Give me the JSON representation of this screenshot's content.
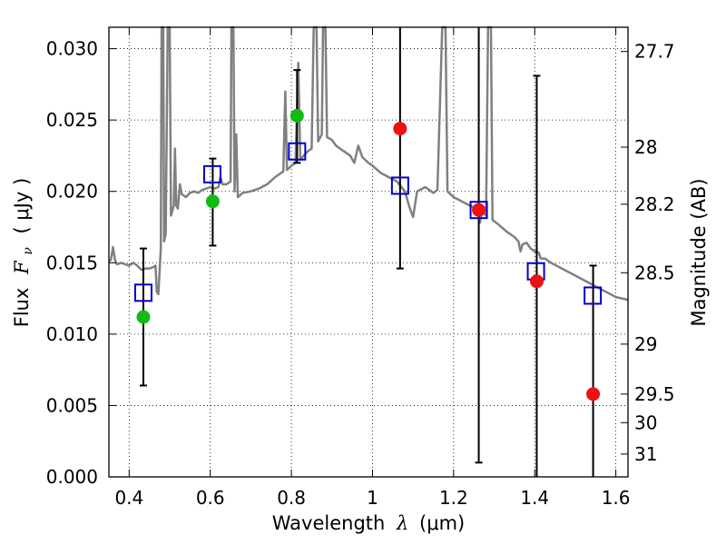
{
  "chart_data": {
    "type": "scatter",
    "title": "",
    "xlabel": {
      "prefix": "Wavelength",
      "symbol": "λ",
      "unit": "(μm)"
    },
    "ylabel": {
      "prefix": "Flux",
      "symbol": "F",
      "subscript": "ν",
      "unit": "( μJy )"
    },
    "ylabel_right": "Magnitude (AB)",
    "xlim": [
      0.35,
      1.63
    ],
    "ylim": [
      0.0,
      0.0315
    ],
    "grid": true,
    "x_ticks": [
      0.4,
      0.6,
      0.8,
      1.0,
      1.2,
      1.4,
      1.6
    ],
    "x_tick_labels": [
      "0.4",
      "0.6",
      "0.8",
      "1",
      "1.2",
      "1.4",
      "1.6"
    ],
    "y_ticks": [
      0.0,
      0.005,
      0.01,
      0.015,
      0.02,
      0.025,
      0.03
    ],
    "y_tick_labels": [
      "0.000",
      "0.005",
      "0.010",
      "0.015",
      "0.020",
      "0.025",
      "0.030"
    ],
    "right_ticks": [
      {
        "label": "27.7",
        "flux": 0.0298
      },
      {
        "label": "28",
        "flux": 0.0231
      },
      {
        "label": "28.2",
        "flux": 0.0191
      },
      {
        "label": "28.5",
        "flux": 0.0143
      },
      {
        "label": "29",
        "flux": 0.0093
      },
      {
        "label": "29.5",
        "flux": 0.0058
      },
      {
        "label": "30",
        "flux": 0.0038
      },
      {
        "label": "31",
        "flux": 0.0016
      }
    ],
    "series": [
      {
        "name": "model SED",
        "kind": "line",
        "color": "#808080",
        "points": [
          [
            0.35,
            0.0151
          ],
          [
            0.355,
            0.0152
          ],
          [
            0.36,
            0.0161
          ],
          [
            0.365,
            0.0152
          ],
          [
            0.37,
            0.0149
          ],
          [
            0.38,
            0.015
          ],
          [
            0.39,
            0.0149
          ],
          [
            0.4,
            0.0148
          ],
          [
            0.41,
            0.015
          ],
          [
            0.42,
            0.0148
          ],
          [
            0.43,
            0.0145
          ],
          [
            0.44,
            0.0146
          ],
          [
            0.45,
            0.0146
          ],
          [
            0.46,
            0.0147
          ],
          [
            0.465,
            0.0148
          ],
          [
            0.468,
            0.013
          ],
          [
            0.472,
            0.0128
          ],
          [
            0.478,
            0.016
          ],
          [
            0.48,
            0.0315
          ],
          [
            0.484,
            0.0315
          ],
          [
            0.486,
            0.0165
          ],
          [
            0.49,
            0.017
          ],
          [
            0.495,
            0.0315
          ],
          [
            0.5,
            0.0315
          ],
          [
            0.503,
            0.0183
          ],
          [
            0.51,
            0.019
          ],
          [
            0.513,
            0.023
          ],
          [
            0.516,
            0.019
          ],
          [
            0.52,
            0.0188
          ],
          [
            0.525,
            0.0205
          ],
          [
            0.53,
            0.0198
          ],
          [
            0.54,
            0.0196
          ],
          [
            0.55,
            0.0199
          ],
          [
            0.56,
            0.02
          ],
          [
            0.57,
            0.0199
          ],
          [
            0.58,
            0.0201
          ],
          [
            0.59,
            0.0202
          ],
          [
            0.6,
            0.0203
          ],
          [
            0.61,
            0.0202
          ],
          [
            0.62,
            0.0203
          ],
          [
            0.625,
            0.021
          ],
          [
            0.63,
            0.0205
          ],
          [
            0.64,
            0.0205
          ],
          [
            0.65,
            0.0207
          ],
          [
            0.652,
            0.0315
          ],
          [
            0.657,
            0.0315
          ],
          [
            0.66,
            0.02
          ],
          [
            0.664,
            0.024
          ],
          [
            0.668,
            0.0196
          ],
          [
            0.68,
            0.0199
          ],
          [
            0.7,
            0.02
          ],
          [
            0.72,
            0.0202
          ],
          [
            0.74,
            0.0205
          ],
          [
            0.76,
            0.021
          ],
          [
            0.78,
            0.0214
          ],
          [
            0.785,
            0.027
          ],
          [
            0.789,
            0.0215
          ],
          [
            0.8,
            0.0218
          ],
          [
            0.81,
            0.022
          ],
          [
            0.817,
            0.029
          ],
          [
            0.822,
            0.0222
          ],
          [
            0.83,
            0.0225
          ],
          [
            0.84,
            0.0228
          ],
          [
            0.85,
            0.023
          ],
          [
            0.855,
            0.0315
          ],
          [
            0.862,
            0.0315
          ],
          [
            0.866,
            0.0235
          ],
          [
            0.875,
            0.024
          ],
          [
            0.878,
            0.0315
          ],
          [
            0.884,
            0.0315
          ],
          [
            0.888,
            0.0238
          ],
          [
            0.9,
            0.0236
          ],
          [
            0.91,
            0.0232
          ],
          [
            0.92,
            0.023
          ],
          [
            0.93,
            0.0228
          ],
          [
            0.945,
            0.0225
          ],
          [
            0.955,
            0.022
          ],
          [
            0.965,
            0.0232
          ],
          [
            0.975,
            0.0224
          ],
          [
            0.99,
            0.022
          ],
          [
            1.0,
            0.0218
          ],
          [
            1.02,
            0.0213
          ],
          [
            1.04,
            0.021
          ],
          [
            1.06,
            0.0207
          ],
          [
            1.08,
            0.02
          ],
          [
            1.09,
            0.019
          ],
          [
            1.1,
            0.0182
          ],
          [
            1.11,
            0.02
          ],
          [
            1.13,
            0.0203
          ],
          [
            1.15,
            0.0199
          ],
          [
            1.16,
            0.0201
          ],
          [
            1.172,
            0.0315
          ],
          [
            1.18,
            0.0315
          ],
          [
            1.185,
            0.02
          ],
          [
            1.2,
            0.0196
          ],
          [
            1.22,
            0.0193
          ],
          [
            1.24,
            0.019
          ],
          [
            1.26,
            0.0188
          ],
          [
            1.265,
            0.0178
          ],
          [
            1.27,
            0.0186
          ],
          [
            1.28,
            0.0183
          ],
          [
            1.285,
            0.0315
          ],
          [
            1.292,
            0.0315
          ],
          [
            1.296,
            0.018
          ],
          [
            1.31,
            0.0177
          ],
          [
            1.33,
            0.0172
          ],
          [
            1.35,
            0.0168
          ],
          [
            1.36,
            0.0165
          ],
          [
            1.365,
            0.0158
          ],
          [
            1.37,
            0.0163
          ],
          [
            1.38,
            0.0164
          ],
          [
            1.39,
            0.016
          ],
          [
            1.4,
            0.0158
          ],
          [
            1.41,
            0.0157
          ],
          [
            1.415,
            0.0153
          ],
          [
            1.425,
            0.0153
          ],
          [
            1.44,
            0.015
          ],
          [
            1.46,
            0.0147
          ],
          [
            1.48,
            0.0144
          ],
          [
            1.5,
            0.0141
          ],
          [
            1.52,
            0.0138
          ],
          [
            1.54,
            0.0135
          ],
          [
            1.56,
            0.0132
          ],
          [
            1.58,
            0.0129
          ],
          [
            1.6,
            0.0126
          ],
          [
            1.63,
            0.0124
          ]
        ]
      },
      {
        "name": "model photometry",
        "kind": "open-square",
        "color": "#0000cc",
        "points": [
          [
            0.435,
            0.0129
          ],
          [
            0.605,
            0.0212
          ],
          [
            0.814,
            0.0228
          ],
          [
            1.068,
            0.0204
          ],
          [
            1.262,
            0.0187
          ],
          [
            1.403,
            0.0144
          ],
          [
            1.543,
            0.0127
          ]
        ]
      },
      {
        "name": "detections",
        "kind": "filled-circle",
        "color": "#11bb11",
        "points": [
          [
            0.435,
            0.0112
          ],
          [
            0.606,
            0.0193
          ],
          [
            0.814,
            0.0253
          ]
        ]
      },
      {
        "name": "upper-band measurements",
        "kind": "filled-circle",
        "color": "#ee1111",
        "points": [
          [
            1.068,
            0.0244
          ],
          [
            1.262,
            0.0187
          ],
          [
            1.405,
            0.0137
          ],
          [
            1.544,
            0.0058
          ]
        ]
      },
      {
        "name": "error bars",
        "kind": "errorbar",
        "color": "#000000",
        "points": [
          [
            0.435,
            0.0064,
            0.016
          ],
          [
            0.606,
            0.0162,
            0.0223
          ],
          [
            0.814,
            0.022,
            0.0285
          ],
          [
            1.068,
            0.0146,
            0.0315
          ],
          [
            1.262,
            0.001,
            0.0315
          ],
          [
            1.405,
            0.0,
            0.0281
          ],
          [
            1.544,
            0.0,
            0.0148
          ]
        ]
      }
    ]
  }
}
